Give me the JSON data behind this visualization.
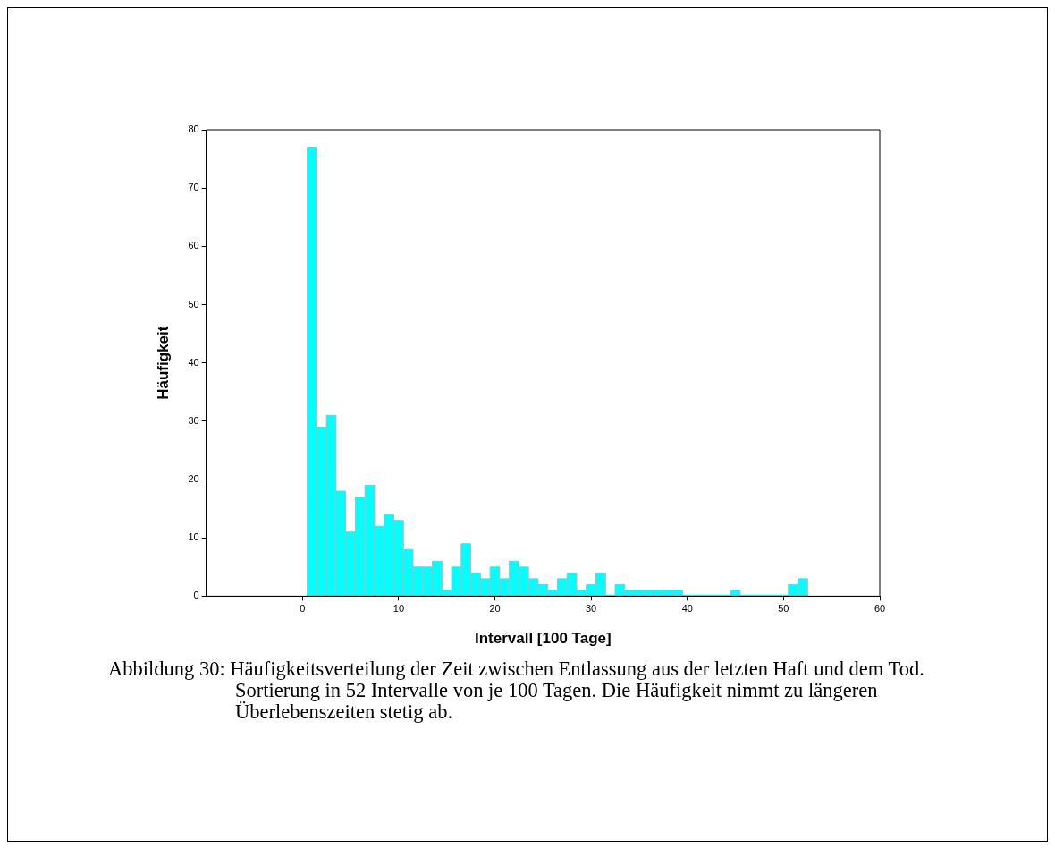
{
  "chart_data": {
    "type": "histogram",
    "xlabel": "Intervall [100 Tage]",
    "ylabel": "Häufigkeit",
    "bins": [
      0.5,
      1.5,
      2.5,
      3.5,
      4.5,
      5.5,
      6.5,
      7.5,
      8.5,
      9.5,
      10.5,
      11.5,
      12.5,
      13.5,
      14.5,
      15.5,
      16.5,
      17.5,
      18.5,
      19.5,
      20.5,
      21.5,
      22.5,
      23.5,
      24.5,
      25.5,
      26.5,
      27.5,
      28.5,
      29.5,
      30.5,
      31.5,
      32.5,
      33.5,
      34.5,
      35.5,
      36.5,
      37.5,
      38.5,
      39.5,
      40.5,
      41.5,
      42.5,
      43.5,
      44.5,
      45.5,
      46.5,
      47.5,
      48.5,
      49.5,
      50.5,
      51.5,
      52.5
    ],
    "values": [
      77,
      29,
      31,
      18,
      11,
      17,
      19,
      12,
      14,
      13,
      8,
      5,
      5,
      6,
      1,
      5,
      9,
      4,
      3,
      5,
      3,
      6,
      5,
      3,
      2,
      1,
      3,
      4,
      1,
      2,
      4,
      0,
      2,
      1,
      1,
      1,
      1,
      1,
      1,
      0,
      0,
      0,
      0,
      0,
      1,
      0,
      0,
      0,
      0,
      0,
      2,
      3
    ],
    "color": "#00ffff",
    "xlim": [
      -10,
      60
    ],
    "xticks": [
      0,
      10,
      20,
      30,
      40,
      50,
      60
    ],
    "ylim": [
      0,
      80
    ],
    "yticks": [
      0,
      10,
      20,
      30,
      40,
      50,
      60,
      70,
      80
    ],
    "grid": false,
    "legend": false,
    "annotations": [
      "Abbildung 30: Häufigkeitsverteilung der Zeit zwischen Entlassung aus der letzten Haft und dem Tod. Sortierung in 52 Intervalle von je 100 Tagen. Die Häufigkeit nimmt zu längeren Überlebenszeiten stetig ab."
    ]
  }
}
